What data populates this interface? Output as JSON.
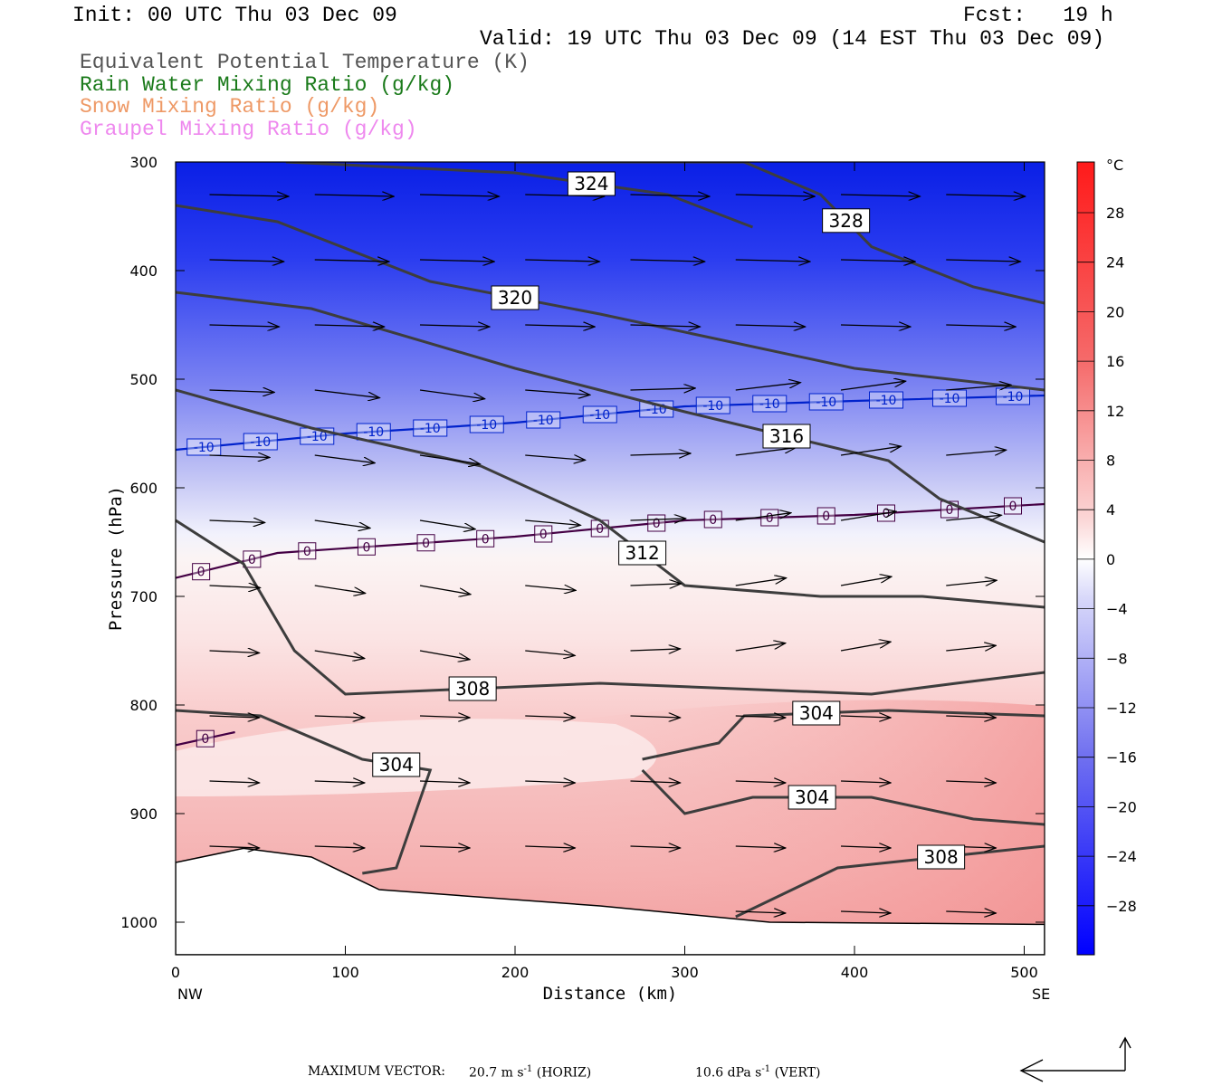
{
  "header": {
    "init": "Init: 00 UTC Thu 03 Dec 09",
    "fcst": "Fcst:   19 h",
    "valid": "Valid: 19 UTC Thu 03 Dec 09 (14 EST Thu 03 Dec 09)"
  },
  "legend": [
    {
      "label": "Equivalent Potential Temperature (K)",
      "color": "#555555"
    },
    {
      "label": "Rain Water Mixing Ratio (g/kg)",
      "color": "#1a7a1a"
    },
    {
      "label": "Snow Mixing Ratio (g/kg)",
      "color": "#ee9966"
    },
    {
      "label": "Graupel Mixing Ratio (g/kg)",
      "color": "#ee88ee"
    }
  ],
  "chart_data": {
    "type": "heatmap",
    "xlabel": "Distance (km)",
    "ylabel": "Pressure (hPa)",
    "x_ticks": [
      0,
      100,
      200,
      300,
      400,
      500
    ],
    "y_ticks": [
      300,
      400,
      500,
      600,
      700,
      800,
      900,
      1000
    ],
    "xlim": [
      0,
      512
    ],
    "ylim": [
      300,
      1030
    ],
    "x_end_labels": {
      "left": "NW",
      "right": "SE"
    },
    "colorbar": {
      "unit": "°C",
      "ticks": [
        28,
        24,
        20,
        16,
        12,
        8,
        4,
        0,
        -4,
        -8,
        -12,
        -16,
        -20,
        -24,
        -28
      ]
    },
    "theta_e_contours": [
      {
        "label": "324",
        "points": [
          [
            65,
            300
          ],
          [
            200,
            310
          ],
          [
            290,
            330
          ],
          [
            340,
            360
          ]
        ]
      },
      {
        "label": "328",
        "points": [
          [
            200,
            300
          ],
          [
            335,
            300
          ],
          [
            380,
            330
          ],
          [
            410,
            378
          ],
          [
            470,
            415
          ],
          [
            512,
            430
          ]
        ]
      },
      {
        "label": "320",
        "points": [
          [
            0,
            340
          ],
          [
            60,
            355
          ],
          [
            150,
            410
          ],
          [
            250,
            440
          ],
          [
            400,
            490
          ],
          [
            512,
            510
          ]
        ]
      },
      {
        "label": "316",
        "points": [
          [
            0,
            420
          ],
          [
            80,
            435
          ],
          [
            200,
            490
          ],
          [
            300,
            530
          ],
          [
            420,
            575
          ],
          [
            450,
            610
          ],
          [
            512,
            650
          ]
        ]
      },
      {
        "label": "312",
        "points": [
          [
            0,
            510
          ],
          [
            80,
            545
          ],
          [
            180,
            580
          ],
          [
            250,
            630
          ],
          [
            300,
            690
          ],
          [
            380,
            700
          ],
          [
            440,
            700
          ],
          [
            512,
            710
          ]
        ]
      },
      {
        "label": "308",
        "points": [
          [
            0,
            630
          ],
          [
            40,
            670
          ],
          [
            70,
            750
          ],
          [
            100,
            790
          ],
          [
            250,
            780
          ],
          [
            410,
            790
          ],
          [
            460,
            780
          ],
          [
            512,
            770
          ]
        ]
      },
      {
        "label": "304",
        "points": [
          [
            0,
            805
          ],
          [
            50,
            810
          ],
          [
            110,
            850
          ],
          [
            150,
            860
          ],
          [
            130,
            950
          ],
          [
            110,
            955
          ]
        ]
      },
      {
        "label": "304",
        "points": [
          [
            275,
            850
          ],
          [
            320,
            835
          ],
          [
            335,
            810
          ],
          [
            420,
            805
          ],
          [
            512,
            810
          ]
        ]
      },
      {
        "label": "304",
        "points": [
          [
            275,
            860
          ],
          [
            300,
            900
          ],
          [
            340,
            885
          ],
          [
            410,
            885
          ],
          [
            470,
            905
          ],
          [
            512,
            910
          ]
        ]
      },
      {
        "label": "308",
        "points": [
          [
            330,
            995
          ],
          [
            390,
            950
          ],
          [
            512,
            930
          ]
        ]
      }
    ],
    "temperature_contours": [
      {
        "label": "-10",
        "color": "#0022cc",
        "points": [
          [
            0,
            565
          ],
          [
            100,
            550
          ],
          [
            200,
            540
          ],
          [
            300,
            525
          ],
          [
            400,
            520
          ],
          [
            512,
            515
          ]
        ]
      },
      {
        "label": "0",
        "color": "#440044",
        "points": [
          [
            0,
            683
          ],
          [
            60,
            660
          ],
          [
            200,
            645
          ],
          [
            300,
            630
          ],
          [
            400,
            625
          ],
          [
            512,
            615
          ]
        ]
      },
      {
        "label": "0",
        "color": "#440044",
        "points": [
          [
            0,
            837
          ],
          [
            35,
            825
          ]
        ]
      }
    ],
    "terrain": [
      [
        0,
        945
      ],
      [
        40,
        932
      ],
      [
        80,
        940
      ],
      [
        120,
        970
      ],
      [
        250,
        985
      ],
      [
        350,
        1000
      ],
      [
        512,
        1002
      ]
    ]
  },
  "footer": {
    "max_vector_label": "MAXIMUM VECTOR:",
    "horiz_value": "20.7 m s",
    "horiz_unit": "(HORIZ)",
    "vert_value": "10.6 dPa s",
    "vert_unit": "(VERT)",
    "exponent": "-1"
  }
}
